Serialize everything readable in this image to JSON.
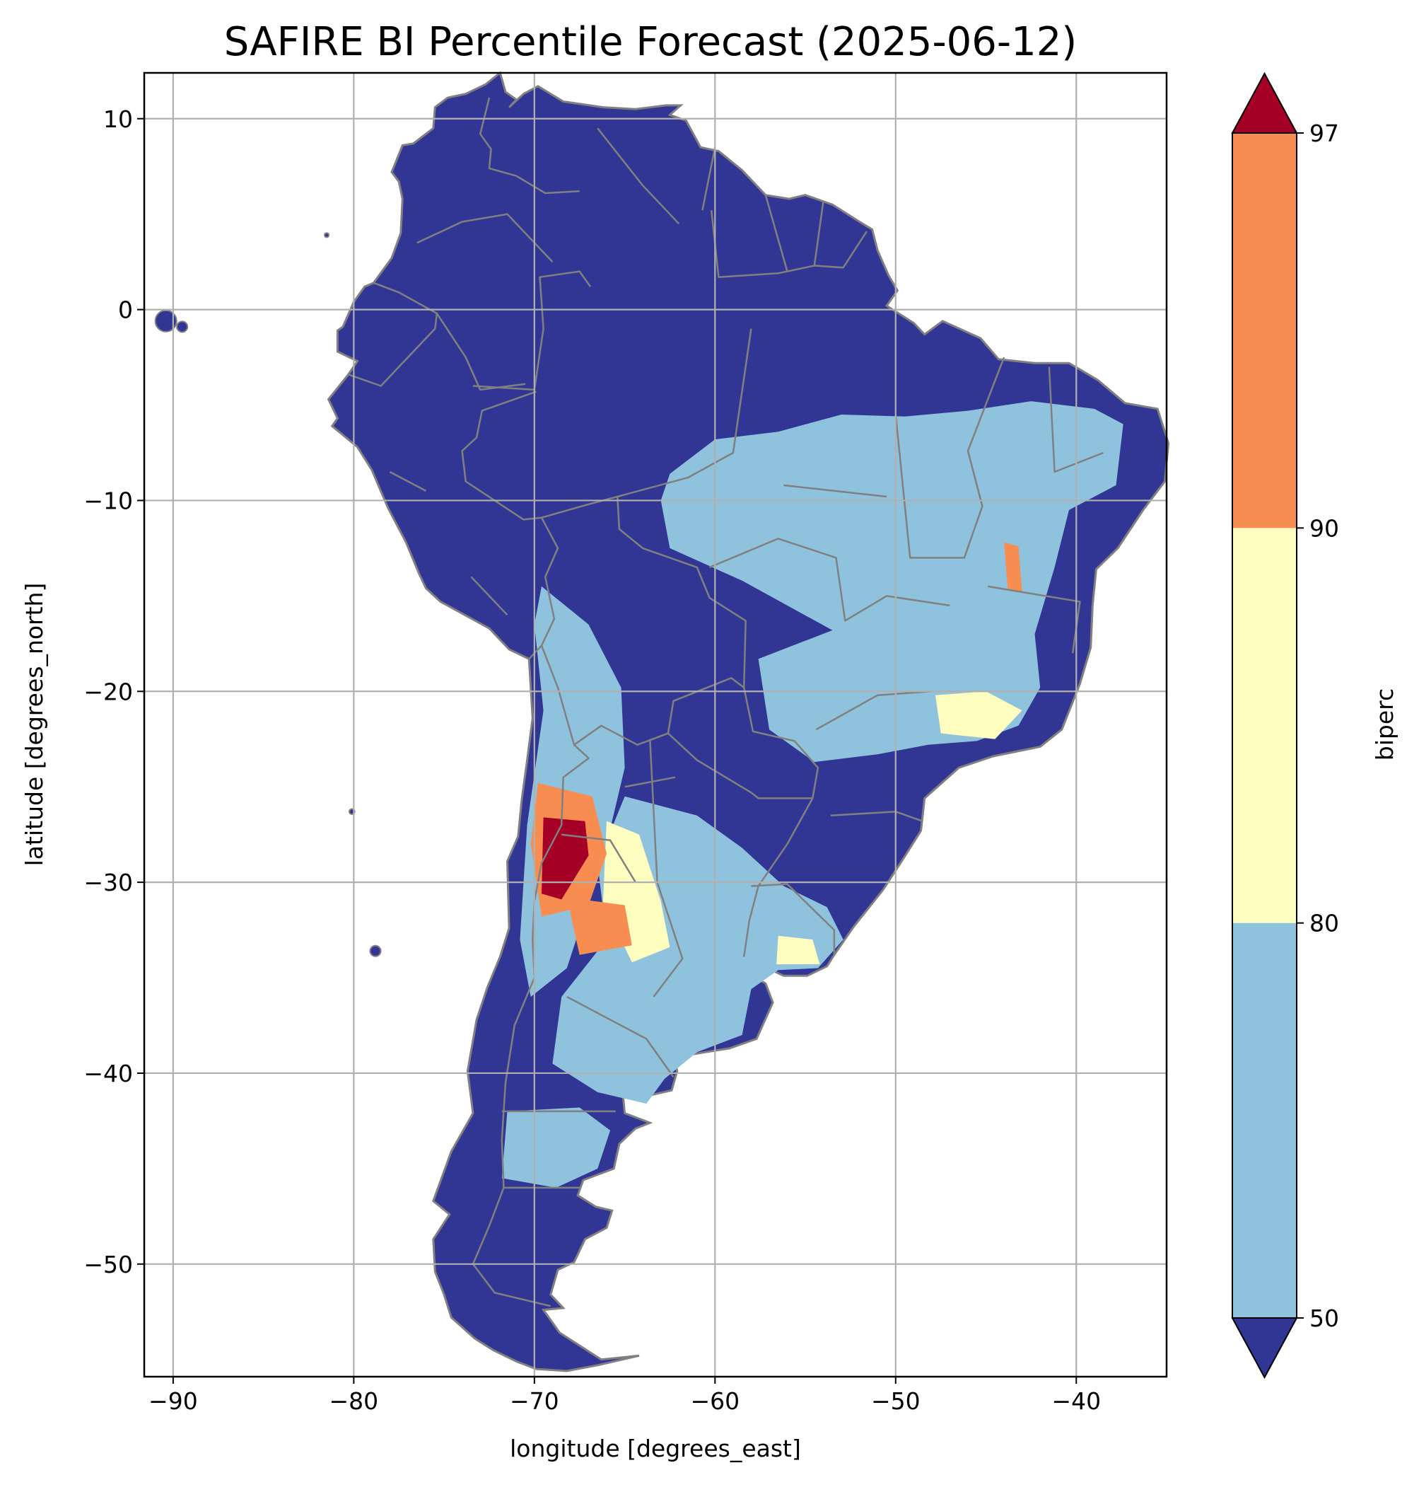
{
  "title": "SAFIRE BI Percentile Forecast (2025-06-12)",
  "map": {
    "xlabel": "longitude [degrees_east]",
    "ylabel": "latitude [degrees_north]",
    "xlim": [
      -91.6,
      -35
    ],
    "ylim": [
      -55.9,
      12.4
    ],
    "xticks": [
      -90,
      -80,
      -70,
      -60,
      -50,
      -40
    ],
    "yticks": [
      10,
      0,
      -10,
      -20,
      -30,
      -40,
      -50
    ],
    "grid": true,
    "ocean_color": "#ffffff",
    "land_low_color": "#313695",
    "border_color": "#808080",
    "gridline_color": "#b0b0b0"
  },
  "colorbar": {
    "label": "biperc",
    "ticks": [
      50,
      80,
      90,
      97
    ],
    "extend": "both",
    "bins": [
      {
        "range": "<50",
        "color": "#313695"
      },
      {
        "range": "50-80",
        "color": "#8fc3dd"
      },
      {
        "range": "80-90",
        "color": "#fefec0"
      },
      {
        "range": "90-97",
        "color": "#f88d52"
      },
      {
        "range": ">97",
        "color": "#a50026"
      }
    ]
  },
  "regions": [
    {
      "name": "brazil-central-east",
      "bin": "50-80"
    },
    {
      "name": "argentina-pampas",
      "bin": "50-80"
    },
    {
      "name": "andes-west-argentina",
      "bin": "50-80"
    },
    {
      "name": "patagonia-central",
      "bin": "50-80"
    },
    {
      "name": "minas-gerais-hotspots",
      "bin": "80-90"
    },
    {
      "name": "cordoba-hotspots",
      "bin": "80-90"
    },
    {
      "name": "uruguay-patch",
      "bin": "80-90"
    },
    {
      "name": "bahia-hotspots",
      "bin": "90-97"
    },
    {
      "name": "san-juan-la-rioja-hotspot",
      "bin": "90-97"
    },
    {
      "name": "mendoza-hotspot",
      "bin": "90-97"
    },
    {
      "name": "la-rioja-core",
      "bin": ">97"
    }
  ]
}
